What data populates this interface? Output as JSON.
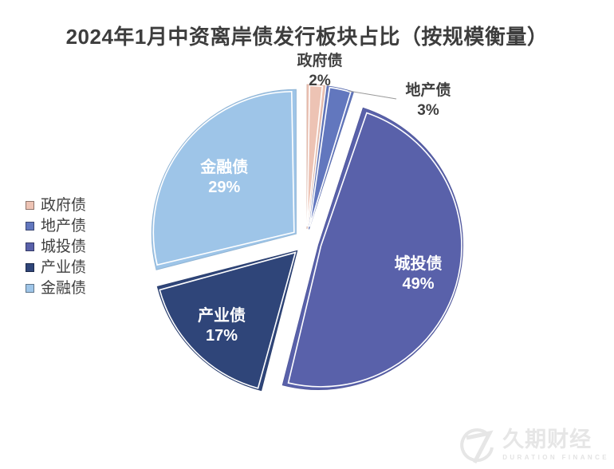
{
  "title": "2024年1月中资离岸债发行板块占比（按规模衡量）",
  "chart_data": {
    "type": "pie",
    "title": "2024年1月中资离岸债发行板块占比（按规模衡量）",
    "categories": [
      "政府债",
      "地产债",
      "城投债",
      "产业债",
      "金融债"
    ],
    "values": [
      2,
      3,
      49,
      17,
      29
    ],
    "unit": "%",
    "slice_labels": [
      "政府债 2%",
      "地产债 3%",
      "城投债 49%",
      "产业债 17%",
      "金融债 29%"
    ],
    "colors": [
      "#edc3b4",
      "#6277be",
      "#5961aa",
      "#2f4579",
      "#9ec5e8"
    ],
    "start_angle_deg": 0,
    "direction": "clockwise",
    "exploded": true,
    "legend_position": "left",
    "text_color": "#3f3f3f",
    "inner_label_color": "#ffffff"
  },
  "watermark": {
    "cn": "久期财经",
    "en": "DURATION FINANCE",
    "icon": "duration-finance-logo"
  }
}
